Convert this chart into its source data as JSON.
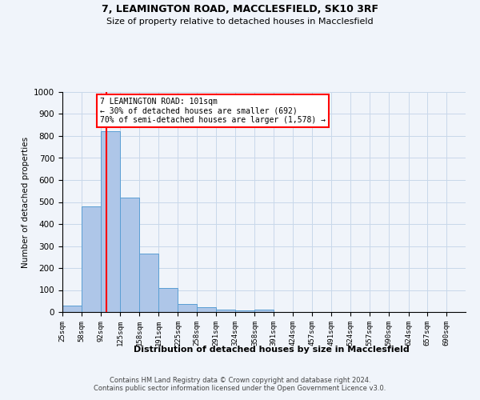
{
  "title1": "7, LEAMINGTON ROAD, MACCLESFIELD, SK10 3RF",
  "title2": "Size of property relative to detached houses in Macclesfield",
  "xlabel": "Distribution of detached houses by size in Macclesfield",
  "ylabel": "Number of detached properties",
  "bar_edges": [
    25,
    58,
    92,
    125,
    158,
    191,
    225,
    258,
    291,
    324,
    358,
    391,
    424,
    457,
    491,
    524,
    557,
    590,
    624,
    657,
    690
  ],
  "bar_heights": [
    30,
    480,
    820,
    520,
    265,
    110,
    38,
    22,
    12,
    8,
    10,
    0,
    0,
    0,
    0,
    0,
    0,
    0,
    0,
    0
  ],
  "bar_color": "#aec6e8",
  "bar_edge_color": "#5a9fd4",
  "vline_x": 101,
  "vline_color": "red",
  "annotation_line1": "7 LEAMINGTON ROAD: 101sqm",
  "annotation_line2": "← 30% of detached houses are smaller (692)",
  "annotation_line3": "70% of semi-detached houses are larger (1,578) →",
  "ylim": [
    0,
    1000
  ],
  "yticks": [
    0,
    100,
    200,
    300,
    400,
    500,
    600,
    700,
    800,
    900,
    1000
  ],
  "xtick_labels": [
    "25sqm",
    "58sqm",
    "92sqm",
    "125sqm",
    "158sqm",
    "191sqm",
    "225sqm",
    "258sqm",
    "291sqm",
    "324sqm",
    "358sqm",
    "391sqm",
    "424sqm",
    "457sqm",
    "491sqm",
    "524sqm",
    "557sqm",
    "590sqm",
    "624sqm",
    "657sqm",
    "690sqm"
  ],
  "footnote": "Contains HM Land Registry data © Crown copyright and database right 2024.\nContains public sector information licensed under the Open Government Licence v3.0.",
  "background_color": "#f0f4fa",
  "grid_color": "#c8d8ea"
}
